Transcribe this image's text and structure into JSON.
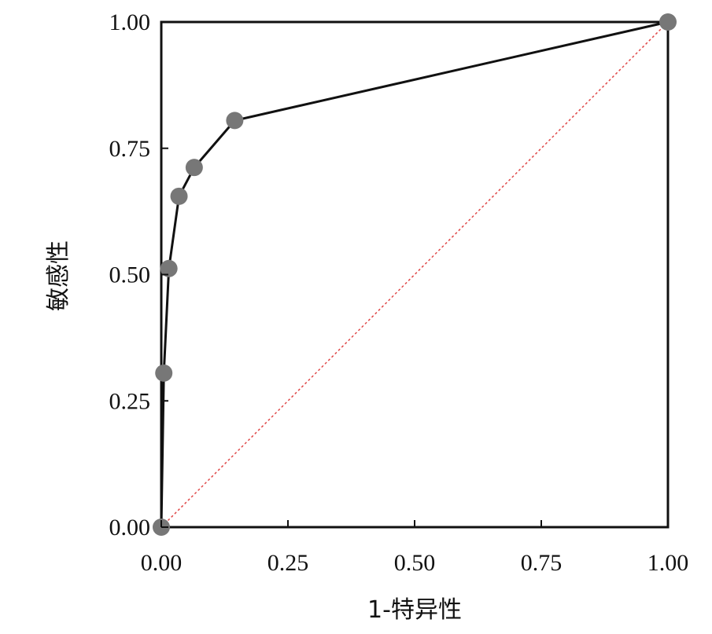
{
  "chart_data": {
    "type": "line",
    "xlabel": "1-特异性",
    "ylabel": "敏感性",
    "xlim": [
      0,
      1
    ],
    "ylim": [
      0,
      1
    ],
    "x_ticks": [
      "0.00",
      "0.25",
      "0.50",
      "0.75",
      "1.00"
    ],
    "y_ticks": [
      "0.00",
      "0.25",
      "0.50",
      "0.75",
      "1.00"
    ],
    "grid": false,
    "series": [
      {
        "type": "line",
        "color": "#111111",
        "marker_color": "#777777",
        "x": [
          0.0,
          0.005,
          0.015,
          0.035,
          0.065,
          0.145,
          1.0
        ],
        "y": [
          0.0,
          0.305,
          0.512,
          0.655,
          0.712,
          0.805,
          1.0
        ]
      },
      {
        "type": "reference",
        "style": "dashed",
        "color": "#e04848",
        "x": [
          0,
          1
        ],
        "y": [
          0,
          1
        ]
      }
    ]
  }
}
